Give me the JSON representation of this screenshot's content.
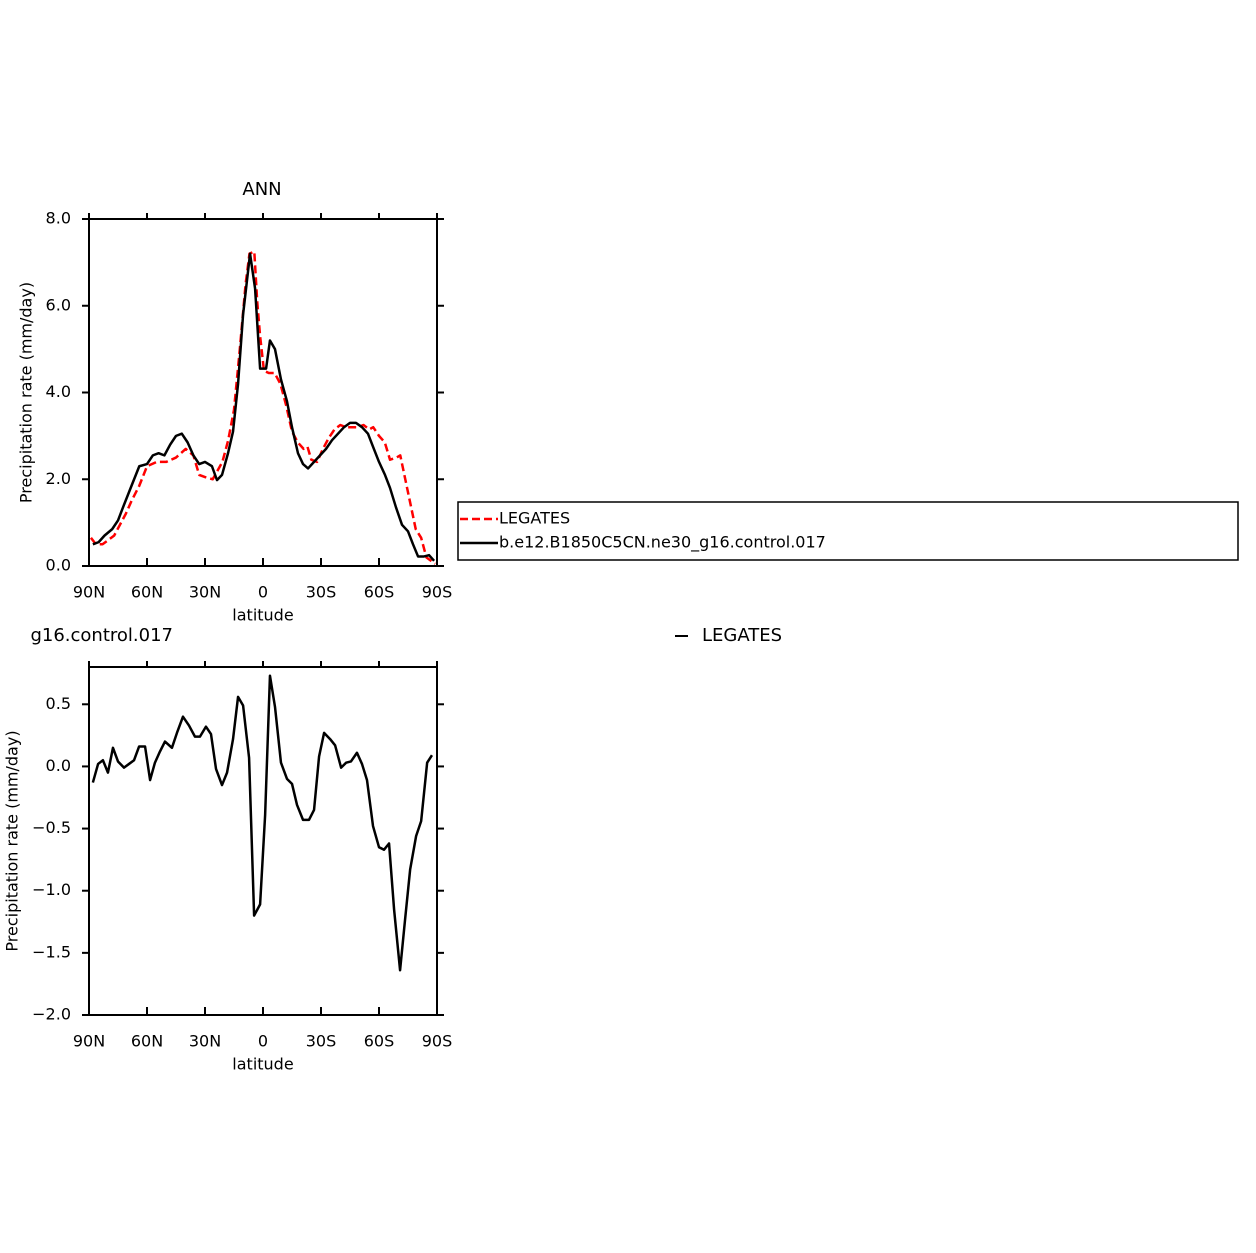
{
  "chart_data": [
    {
      "type": "line",
      "title": "ANN",
      "xlabel": "latitude",
      "ylabel": "Precipitation rate (mm/day)",
      "xlim": [
        90,
        -90
      ],
      "xticks": [
        {
          "value": 90,
          "label": "90N"
        },
        {
          "value": 60,
          "label": "60N"
        },
        {
          "value": 30,
          "label": "30N"
        },
        0,
        {
          "value": -30,
          "label": "30S"
        },
        {
          "value": -60,
          "label": "60S"
        },
        {
          "value": -90,
          "label": "90S"
        }
      ],
      "ylim": [
        0,
        8
      ],
      "yticks": [
        {
          "value": 0,
          "label": "0.0"
        },
        {
          "value": 2,
          "label": "2.0"
        },
        {
          "value": 4,
          "label": "4.0"
        },
        {
          "value": 6,
          "label": "6.0"
        },
        {
          "value": 8,
          "label": "8.0"
        }
      ],
      "legend": "right",
      "series": [
        {
          "name": "LEGATES",
          "color": "#ff0000",
          "linestyle": "dashed",
          "x": [
            89,
            86.4,
            83,
            80,
            77,
            74,
            71,
            68,
            64,
            60,
            55,
            50,
            45,
            40,
            36,
            33,
            30,
            26,
            21,
            18,
            15,
            12,
            9,
            7,
            4.5,
            3,
            1.5,
            -0.5,
            -3,
            -6,
            -9,
            -12,
            -15,
            -18,
            -21,
            -23,
            -25,
            -28,
            -31,
            -34,
            -37,
            -40,
            -43,
            -46,
            -49,
            -52,
            -55,
            -57,
            -60,
            -63,
            -65.7,
            -69,
            -71,
            -75,
            -79,
            -81.8,
            -84.5,
            -89
          ],
          "values": [
            0.65,
            0.5,
            0.5,
            0.6,
            0.7,
            0.95,
            1.2,
            1.5,
            1.85,
            2.3,
            2.4,
            2.4,
            2.5,
            2.7,
            2.55,
            2.1,
            2.05,
            2.0,
            2.4,
            2.9,
            3.6,
            5.0,
            6.5,
            7.2,
            7.25,
            6.1,
            5.3,
            4.5,
            4.45,
            4.45,
            4.2,
            3.7,
            3.1,
            2.85,
            2.7,
            2.75,
            2.45,
            2.4,
            2.7,
            2.95,
            3.15,
            3.25,
            3.2,
            3.2,
            3.2,
            3.25,
            3.15,
            3.2,
            3.0,
            2.85,
            2.45,
            2.5,
            2.55,
            1.7,
            0.85,
            0.65,
            0.2,
            0.05
          ]
        },
        {
          "name": "b.e12.B1850C5CN.ne30_g16.control.017",
          "color": "#000000",
          "linestyle": "solid",
          "x": [
            88,
            85,
            82,
            78,
            75,
            72,
            68,
            64,
            60,
            57,
            54,
            51,
            48,
            45,
            42,
            39,
            36,
            33,
            30,
            26.4,
            23.8,
            21.2,
            18.1,
            15.5,
            12.9,
            10.3,
            6.7,
            4.1,
            1.5,
            -1.6,
            -3.6,
            -6.2,
            -9.3,
            -12.4,
            -15,
            -18.1,
            -20.7,
            -23.3,
            -26.4,
            -29.5,
            -32.6,
            -35.7,
            -38.8,
            -41.9,
            -45,
            -48.1,
            -51.2,
            -54.3,
            -56.9,
            -60,
            -63.1,
            -65.7,
            -68.8,
            -71.9,
            -75,
            -77.6,
            -80.2,
            -83.3,
            -85.9,
            -88.5
          ],
          "values": [
            0.5,
            0.55,
            0.7,
            0.85,
            1.05,
            1.4,
            1.85,
            2.3,
            2.35,
            2.55,
            2.6,
            2.55,
            2.8,
            3.0,
            3.05,
            2.85,
            2.55,
            2.35,
            2.4,
            2.3,
            1.98,
            2.1,
            2.6,
            3.1,
            4.2,
            5.8,
            7.2,
            6.4,
            4.55,
            4.55,
            5.2,
            5.0,
            4.3,
            3.8,
            3.2,
            2.6,
            2.35,
            2.25,
            2.4,
            2.55,
            2.7,
            2.9,
            3.05,
            3.2,
            3.3,
            3.3,
            3.2,
            3.05,
            2.75,
            2.4,
            2.1,
            1.8,
            1.35,
            0.95,
            0.8,
            0.5,
            0.22,
            0.22,
            0.25,
            0.12
          ]
        }
      ]
    },
    {
      "type": "line",
      "title_left": "g16.control.017",
      "title_right": "LEGATES",
      "xlabel": "latitude",
      "ylabel": "Precipitation rate (mm/day)",
      "xlim": [
        90,
        -90
      ],
      "xticks": [
        {
          "value": 90,
          "label": "90N"
        },
        {
          "value": 60,
          "label": "60N"
        },
        {
          "value": 30,
          "label": "30N"
        },
        0,
        {
          "value": -30,
          "label": "30S"
        },
        {
          "value": -60,
          "label": "60S"
        },
        {
          "value": -90,
          "label": "90S"
        }
      ],
      "ylim": [
        -2.0,
        0.8
      ],
      "yticks": [
        {
          "value": -2.0,
          "label": "−2.0"
        },
        {
          "value": -1.5,
          "label": "−1.5"
        },
        {
          "value": -1.0,
          "label": "−1.0"
        },
        {
          "value": -0.5,
          "label": "−0.5"
        },
        {
          "value": 0,
          "label": "0.0"
        },
        {
          "value": 0.5,
          "label": "0.5"
        }
      ],
      "series": [
        {
          "color": "#000000",
          "linestyle": "solid",
          "x": [
            88,
            85.3,
            82.8,
            80.2,
            77.6,
            75,
            71.9,
            69.3,
            66.7,
            64.1,
            61,
            58.4,
            55.9,
            53.3,
            50.7,
            47.1,
            44.5,
            41.4,
            38.3,
            35.2,
            32.6,
            29.5,
            26.9,
            24.3,
            21.2,
            18.6,
            15.5,
            12.9,
            10.3,
            7.2,
            4.6,
            1.5,
            -1.1,
            -3.6,
            -6.2,
            -9.3,
            -12.4,
            -15,
            -17.6,
            -20.7,
            -23.8,
            -26.4,
            -29,
            -31.6,
            -34.7,
            -37.3,
            -40.4,
            -43,
            -45.5,
            -48.6,
            -51.2,
            -53.8,
            -56.9,
            -60,
            -62.6,
            -65.2,
            -67.8,
            -70.9,
            -73.5,
            -76.1,
            -79.2,
            -81.8,
            -84.9,
            -87.4
          ],
          "values": [
            -0.13,
            0.02,
            0.05,
            -0.05,
            0.15,
            0.04,
            -0.01,
            0.02,
            0.05,
            0.16,
            0.16,
            -0.11,
            0.03,
            0.12,
            0.2,
            0.15,
            0.27,
            0.4,
            0.33,
            0.24,
            0.24,
            0.32,
            0.26,
            -0.02,
            -0.15,
            -0.05,
            0.22,
            0.56,
            0.49,
            0.07,
            -1.2,
            -1.11,
            -0.39,
            0.73,
            0.48,
            0.03,
            -0.1,
            -0.14,
            -0.31,
            -0.43,
            -0.43,
            -0.35,
            0.08,
            0.27,
            0.22,
            0.17,
            -0.01,
            0.03,
            0.04,
            0.11,
            0.02,
            -0.11,
            -0.48,
            -0.65,
            -0.67,
            -0.62,
            -1.15,
            -1.64,
            -1.23,
            -0.83,
            -0.56,
            -0.44,
            0.03,
            0.09
          ]
        }
      ]
    }
  ]
}
